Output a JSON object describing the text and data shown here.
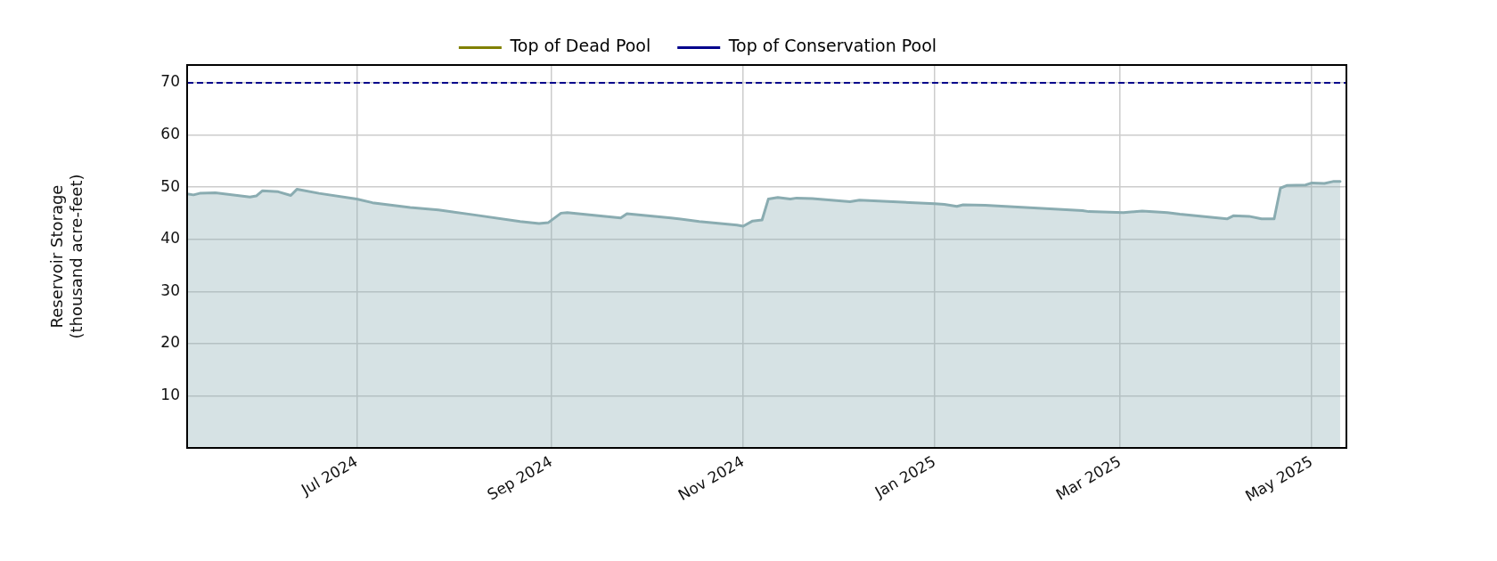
{
  "chart_data": {
    "type": "area",
    "ylabel": "Reservoir Storage\n(thousand acre-feet)",
    "x": [
      "2024-05-08",
      "2024-05-10",
      "2024-05-12",
      "2024-05-17",
      "2024-05-28",
      "2024-05-30",
      "2024-06-01",
      "2024-06-06",
      "2024-06-10",
      "2024-06-12",
      "2024-06-19",
      "2024-07-01",
      "2024-07-06",
      "2024-07-18",
      "2024-07-27",
      "2024-08-07",
      "2024-08-22",
      "2024-08-28",
      "2024-08-31",
      "2024-09-04",
      "2024-09-06",
      "2024-09-23",
      "2024-09-25",
      "2024-10-09",
      "2024-10-18",
      "2024-10-30",
      "2024-11-01",
      "2024-11-04",
      "2024-11-07",
      "2024-11-09",
      "2024-11-12",
      "2024-11-16",
      "2024-11-18",
      "2024-11-23",
      "2024-12-05",
      "2024-12-08",
      "2025-01-01",
      "2025-01-04",
      "2025-01-08",
      "2025-01-10",
      "2025-01-17",
      "2025-02-17",
      "2025-02-19",
      "2025-03-02",
      "2025-03-08",
      "2025-03-16",
      "2025-03-20",
      "2025-04-04",
      "2025-04-06",
      "2025-04-11",
      "2025-04-15",
      "2025-04-19",
      "2025-04-21",
      "2025-04-23",
      "2025-04-29",
      "2025-05-01",
      "2025-05-05",
      "2025-05-08",
      "2025-05-10"
    ],
    "series": [
      {
        "color": "#8aacb1",
        "values": [
          48.7,
          48.5,
          48.8,
          48.9,
          48.1,
          48.3,
          49.3,
          49.1,
          48.4,
          49.6,
          48.8,
          47.7,
          47.0,
          46.1,
          45.6,
          44.7,
          43.4,
          43.0,
          43.2,
          45.0,
          45.1,
          44.1,
          44.9,
          44.1,
          43.4,
          42.7,
          42.5,
          43.5,
          43.7,
          47.7,
          48.0,
          47.7,
          47.9,
          47.8,
          47.2,
          47.5,
          46.8,
          46.7,
          46.3,
          46.6,
          46.5,
          45.5,
          45.3,
          45.1,
          45.4,
          45.1,
          44.8,
          43.9,
          44.5,
          44.4,
          43.9,
          43.9,
          49.8,
          50.3,
          50.4,
          50.8,
          50.7,
          51.1,
          51.1
        ]
      }
    ],
    "xlim": [
      "2024-05-08",
      "2025-05-12"
    ],
    "xticks": [
      {
        "value": "2024-07",
        "label": "Jul 2024"
      },
      {
        "value": "2024-09",
        "label": "Sep 2024"
      },
      {
        "value": "2024-11",
        "label": "Nov 2024"
      },
      {
        "value": "2025-01",
        "label": "Jan 2025"
      },
      {
        "value": "2025-03",
        "label": "Mar 2025"
      },
      {
        "value": "2025-05",
        "label": "May 2025"
      }
    ],
    "ylim": [
      0,
      73.4
    ],
    "yticks": [
      10,
      20,
      30,
      40,
      50,
      60,
      70
    ],
    "ref_lines": [
      {
        "axis": "y",
        "value": null,
        "label": "Top of Dead Pool",
        "color": "#808000",
        "line_style": "dashed"
      },
      {
        "axis": "y",
        "value": 70,
        "label": "Top of Conservation Pool",
        "color": "#00008b",
        "line_style": "dashed"
      }
    ],
    "grid": true,
    "legend": "top"
  }
}
